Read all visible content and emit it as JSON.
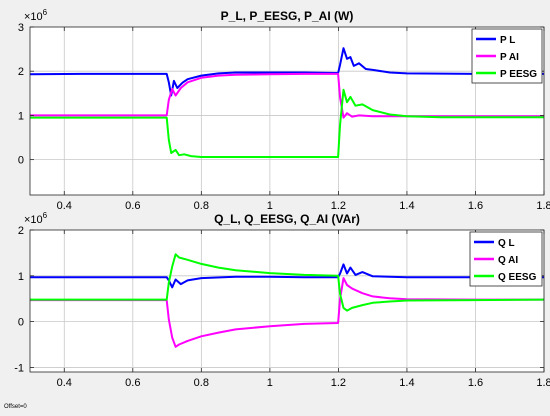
{
  "footer": {
    "offset_label": "Offset=0"
  },
  "colors": {
    "blue": "#0000ff",
    "magenta": "#ff00ff",
    "green": "#00ff00",
    "grid": "#c8c8c8",
    "figure_bg": "#f0f0f0",
    "axes_bg": "#ffffff"
  },
  "chart_data": [
    {
      "type": "line",
      "title": "P_L, P_EESG, P_AI (W)",
      "exponent_label": "×10",
      "exponent_power": "6",
      "xlabel": "",
      "ylabel": "",
      "xlim": [
        0.3,
        1.8
      ],
      "ylim": [
        -0.8,
        3.0
      ],
      "xticks": [
        0.4,
        0.6,
        0.8,
        1.0,
        1.2,
        1.4,
        1.6,
        1.8
      ],
      "xtick_labels": [
        "0.4",
        "0.6",
        "0.8",
        "1",
        "1.2",
        "1.4",
        "1.6",
        "1.8"
      ],
      "yticks": [
        0,
        1,
        2,
        3
      ],
      "ytick_labels": [
        "0",
        "1",
        "2",
        "3"
      ],
      "grid": true,
      "legend_position": "top-right",
      "series": [
        {
          "name": "P L",
          "color": "#0000ff",
          "points": [
            [
              0.3,
              1.93
            ],
            [
              0.45,
              1.94
            ],
            [
              0.6,
              1.94
            ],
            [
              0.699,
              1.94
            ],
            [
              0.705,
              1.75
            ],
            [
              0.712,
              1.45
            ],
            [
              0.72,
              1.78
            ],
            [
              0.73,
              1.62
            ],
            [
              0.745,
              1.74
            ],
            [
              0.76,
              1.82
            ],
            [
              0.8,
              1.9
            ],
            [
              0.85,
              1.95
            ],
            [
              0.9,
              1.97
            ],
            [
              1.0,
              1.97
            ],
            [
              1.1,
              1.97
            ],
            [
              1.199,
              1.96
            ],
            [
              1.205,
              2.15
            ],
            [
              1.215,
              2.52
            ],
            [
              1.225,
              2.28
            ],
            [
              1.235,
              2.32
            ],
            [
              1.245,
              2.12
            ],
            [
              1.26,
              2.18
            ],
            [
              1.28,
              2.05
            ],
            [
              1.3,
              2.03
            ],
            [
              1.35,
              1.97
            ],
            [
              1.4,
              1.95
            ],
            [
              1.6,
              1.94
            ],
            [
              1.8,
              1.94
            ]
          ]
        },
        {
          "name": "P AI",
          "color": "#ff00ff",
          "points": [
            [
              0.3,
              1.0
            ],
            [
              0.5,
              1.0
            ],
            [
              0.699,
              1.0
            ],
            [
              0.705,
              1.35
            ],
            [
              0.715,
              1.6
            ],
            [
              0.725,
              1.45
            ],
            [
              0.74,
              1.62
            ],
            [
              0.76,
              1.75
            ],
            [
              0.8,
              1.85
            ],
            [
              0.85,
              1.9
            ],
            [
              0.9,
              1.92
            ],
            [
              1.0,
              1.93
            ],
            [
              1.1,
              1.94
            ],
            [
              1.199,
              1.94
            ],
            [
              1.205,
              1.4
            ],
            [
              1.215,
              0.95
            ],
            [
              1.225,
              1.05
            ],
            [
              1.24,
              0.97
            ],
            [
              1.26,
              1.0
            ],
            [
              1.3,
              0.98
            ],
            [
              1.4,
              0.98
            ],
            [
              1.6,
              0.98
            ],
            [
              1.8,
              0.98
            ]
          ]
        },
        {
          "name": "P EESG",
          "color": "#00ff00",
          "points": [
            [
              0.3,
              0.95
            ],
            [
              0.5,
              0.95
            ],
            [
              0.699,
              0.95
            ],
            [
              0.705,
              0.45
            ],
            [
              0.712,
              0.15
            ],
            [
              0.725,
              0.22
            ],
            [
              0.735,
              0.1
            ],
            [
              0.75,
              0.12
            ],
            [
              0.77,
              0.08
            ],
            [
              0.8,
              0.06
            ],
            [
              0.9,
              0.06
            ],
            [
              1.0,
              0.06
            ],
            [
              1.1,
              0.06
            ],
            [
              1.199,
              0.06
            ],
            [
              1.205,
              0.8
            ],
            [
              1.215,
              1.58
            ],
            [
              1.225,
              1.3
            ],
            [
              1.235,
              1.42
            ],
            [
              1.25,
              1.22
            ],
            [
              1.27,
              1.25
            ],
            [
              1.3,
              1.12
            ],
            [
              1.35,
              1.02
            ],
            [
              1.4,
              0.98
            ],
            [
              1.5,
              0.96
            ],
            [
              1.8,
              0.96
            ]
          ]
        }
      ]
    },
    {
      "type": "line",
      "title": "Q_L, Q_EESG, Q_AI (VAr)",
      "exponent_label": "×10",
      "exponent_power": "6",
      "xlabel": "",
      "ylabel": "",
      "xlim": [
        0.3,
        1.8
      ],
      "ylim": [
        -1.1,
        2.0
      ],
      "xticks": [
        0.4,
        0.6,
        0.8,
        1.0,
        1.2,
        1.4,
        1.6,
        1.8
      ],
      "xtick_labels": [
        "0.4",
        "0.6",
        "0.8",
        "1",
        "1.2",
        "1.4",
        "1.6",
        "1.8"
      ],
      "yticks": [
        -1,
        0,
        1,
        2
      ],
      "ytick_labels": [
        "-1",
        "0",
        "1",
        "2"
      ],
      "grid": true,
      "legend_position": "top-right",
      "series": [
        {
          "name": "Q L",
          "color": "#0000ff",
          "points": [
            [
              0.3,
              0.97
            ],
            [
              0.5,
              0.97
            ],
            [
              0.699,
              0.97
            ],
            [
              0.705,
              0.9
            ],
            [
              0.715,
              0.75
            ],
            [
              0.725,
              0.92
            ],
            [
              0.74,
              0.82
            ],
            [
              0.76,
              0.9
            ],
            [
              0.8,
              0.95
            ],
            [
              0.9,
              0.98
            ],
            [
              1.0,
              0.98
            ],
            [
              1.1,
              0.97
            ],
            [
              1.199,
              0.97
            ],
            [
              1.205,
              1.05
            ],
            [
              1.215,
              1.25
            ],
            [
              1.225,
              1.05
            ],
            [
              1.235,
              1.18
            ],
            [
              1.25,
              1.02
            ],
            [
              1.27,
              1.08
            ],
            [
              1.3,
              0.99
            ],
            [
              1.4,
              0.97
            ],
            [
              1.8,
              0.97
            ]
          ]
        },
        {
          "name": "Q AI",
          "color": "#ff00ff",
          "points": [
            [
              0.3,
              0.47
            ],
            [
              0.5,
              0.47
            ],
            [
              0.699,
              0.47
            ],
            [
              0.705,
              0.05
            ],
            [
              0.715,
              -0.35
            ],
            [
              0.725,
              -0.55
            ],
            [
              0.735,
              -0.5
            ],
            [
              0.76,
              -0.42
            ],
            [
              0.8,
              -0.32
            ],
            [
              0.85,
              -0.24
            ],
            [
              0.9,
              -0.17
            ],
            [
              1.0,
              -0.1
            ],
            [
              1.1,
              -0.05
            ],
            [
              1.199,
              -0.03
            ],
            [
              1.205,
              0.5
            ],
            [
              1.215,
              0.95
            ],
            [
              1.225,
              0.8
            ],
            [
              1.24,
              0.72
            ],
            [
              1.27,
              0.62
            ],
            [
              1.3,
              0.55
            ],
            [
              1.35,
              0.51
            ],
            [
              1.4,
              0.49
            ],
            [
              1.6,
              0.48
            ],
            [
              1.8,
              0.48
            ]
          ]
        },
        {
          "name": "Q EESG",
          "color": "#00ff00",
          "points": [
            [
              0.3,
              0.48
            ],
            [
              0.5,
              0.48
            ],
            [
              0.699,
              0.48
            ],
            [
              0.705,
              0.85
            ],
            [
              0.715,
              1.2
            ],
            [
              0.725,
              1.47
            ],
            [
              0.735,
              1.4
            ],
            [
              0.76,
              1.35
            ],
            [
              0.8,
              1.26
            ],
            [
              0.85,
              1.18
            ],
            [
              0.9,
              1.12
            ],
            [
              1.0,
              1.06
            ],
            [
              1.1,
              1.02
            ],
            [
              1.199,
              1.0
            ],
            [
              1.205,
              0.6
            ],
            [
              1.215,
              0.3
            ],
            [
              1.225,
              0.24
            ],
            [
              1.24,
              0.3
            ],
            [
              1.27,
              0.36
            ],
            [
              1.3,
              0.41
            ],
            [
              1.35,
              0.44
            ],
            [
              1.4,
              0.46
            ],
            [
              1.6,
              0.47
            ],
            [
              1.8,
              0.48
            ]
          ]
        }
      ]
    }
  ]
}
